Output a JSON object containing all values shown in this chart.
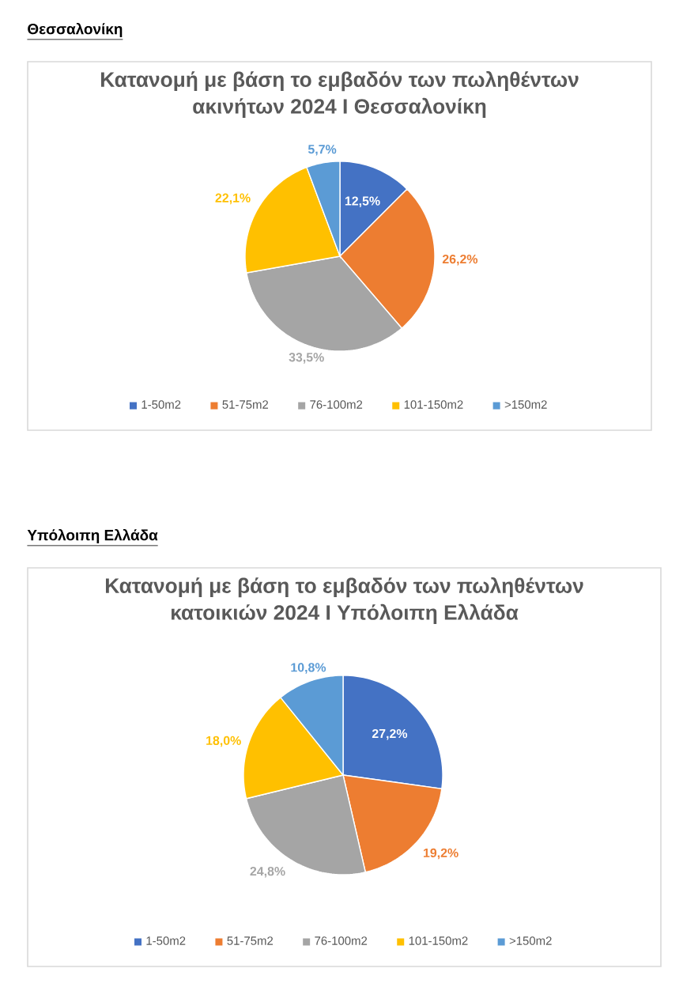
{
  "chart_data": [
    {
      "type": "pie",
      "title": "Κατανομή με βάση το εμβαδόν των πωληθέντων ακινήτων 2024 I Θεσσαλονίκη",
      "annotations": [
        "Θεσσαλονίκη"
      ],
      "categories": [
        "1-50m2",
        "51-75m2",
        "76-100m2",
        "101-150m2",
        ">150m2"
      ],
      "values": [
        12.5,
        26.2,
        33.5,
        22.1,
        5.7
      ],
      "colors": [
        "#4472c4",
        "#ed7d31",
        "#a5a5a5",
        "#ffc000",
        "#5b9bd5"
      ],
      "value_labels": [
        "12,5%",
        "26,2%",
        "33,5%",
        "22,1%",
        "5,7%"
      ],
      "legend": "bottom"
    },
    {
      "type": "pie",
      "title": "Κατανομή με βάση το εμβαδόν των πωληθέντων κατοικιών 2024 I Υπόλοιπη Ελλάδα",
      "annotations": [
        "Υπόλοιπη Ελλάδα"
      ],
      "categories": [
        "1-50m2",
        "51-75m2",
        "76-100m2",
        "101-150m2",
        ">150m2"
      ],
      "values": [
        27.2,
        19.2,
        24.8,
        18.0,
        10.8
      ],
      "colors": [
        "#4472c4",
        "#ed7d31",
        "#a5a5a5",
        "#ffc000",
        "#5b9bd5"
      ],
      "value_labels": [
        "27,2%",
        "19,2%",
        "24,8%",
        "18,0%",
        "10,8%"
      ],
      "legend": "bottom"
    }
  ]
}
